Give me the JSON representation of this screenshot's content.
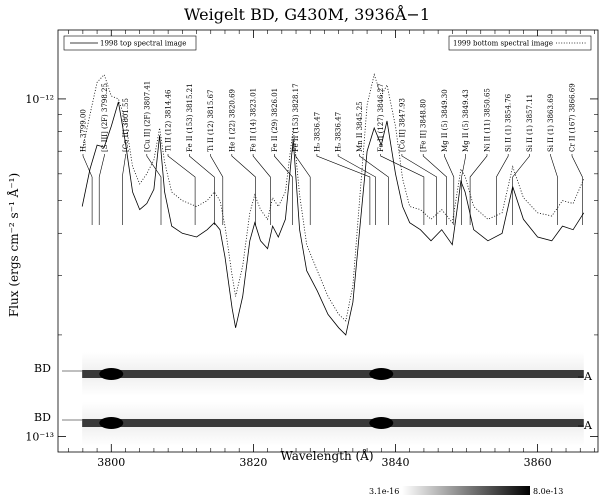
{
  "chart_data": {
    "type": "line",
    "title": "Weigelt BD, G430M, 3936Å−1",
    "xlabel": "Wavelength (Å)",
    "ylabel": "Flux (ergs cm⁻² s⁻¹ Å⁻¹)",
    "xlim": [
      3792.5,
      3868.5
    ],
    "ylim": [
      9e-14,
      1.6e-12
    ],
    "yscale": "log",
    "x_ticks": [
      3800,
      3820,
      3840,
      3860
    ],
    "x_tick_labels": [
      "3800",
      "3820",
      "3840",
      "3860"
    ],
    "y_ticks": [
      1e-13,
      1e-12
    ],
    "y_tick_labels": [
      "10⁻¹³",
      "10⁻¹²"
    ],
    "legend": [
      {
        "label": "1998 top spectral image",
        "style": "solid",
        "position": "top-left"
      },
      {
        "label": "1999 bottom spectral image",
        "style": "dotted",
        "position": "top-right"
      }
    ],
    "series": [
      {
        "name": "1998 top spectral image",
        "style": "solid",
        "x": [
          3795.9,
          3797.0,
          3798.0,
          3799.0,
          3800.0,
          3801.0,
          3802.0,
          3803.0,
          3804.0,
          3805.0,
          3806.0,
          3806.8,
          3807.5,
          3808.5,
          3810.0,
          3812.0,
          3813.5,
          3814.5,
          3815.3,
          3816.0,
          3817.0,
          3817.5,
          3818.5,
          3819.5,
          3820.2,
          3821.0,
          3822.0,
          3822.7,
          3823.5,
          3824.5,
          3825.6,
          3826.5,
          3827.5,
          3829.0,
          3830.5,
          3832.0,
          3833.0,
          3834.0,
          3835.0,
          3836.0,
          3837.0,
          3838.0,
          3838.8,
          3840.0,
          3841.0,
          3842.0,
          3843.5,
          3845.0,
          3846.5,
          3848.0,
          3849.2,
          3849.8,
          3851.0,
          3853.0,
          3855.0,
          3856.5,
          3858.0,
          3860.0,
          3862.0,
          3863.5,
          3865.0,
          3866.5
        ],
        "y": [
          4.8e-13,
          6.2e-13,
          7.3e-13,
          7.2e-13,
          8.3e-13,
          9.8e-13,
          7.4e-13,
          5.3e-13,
          4.7e-13,
          4.9e-13,
          5.4e-13,
          7.8e-13,
          5.3e-13,
          4.2e-13,
          4e-13,
          3.9e-13,
          4.1e-13,
          4.3e-13,
          4.1e-13,
          3.4e-13,
          2.4e-13,
          2.1e-13,
          2.6e-13,
          3.8e-13,
          4.3e-13,
          3.8e-13,
          3.6e-13,
          4.2e-13,
          3.9e-13,
          4.4e-13,
          7.6e-13,
          4.1e-13,
          3.1e-13,
          2.7e-13,
          2.3e-13,
          2.1e-13,
          2e-13,
          2.5e-13,
          4.2e-13,
          7e-13,
          8.2e-13,
          7.3e-13,
          8.6e-13,
          6e-13,
          4.8e-13,
          4.3e-13,
          4.1e-13,
          3.8e-13,
          4.1e-13,
          3.7e-13,
          5.7e-13,
          5.3e-13,
          4.1e-13,
          3.8e-13,
          4e-13,
          5.5e-13,
          4.4e-13,
          3.9e-13,
          3.8e-13,
          4.2e-13,
          4.1e-13,
          4.6e-13
        ]
      },
      {
        "name": "1999 bottom spectral image",
        "style": "dotted",
        "x": [
          3795.9,
          3797.0,
          3798.0,
          3799.0,
          3800.0,
          3801.0,
          3802.0,
          3803.0,
          3804.0,
          3805.0,
          3806.0,
          3806.8,
          3807.5,
          3808.5,
          3810.0,
          3812.0,
          3813.5,
          3814.5,
          3815.3,
          3816.0,
          3817.0,
          3817.5,
          3818.5,
          3819.5,
          3820.2,
          3821.0,
          3822.0,
          3822.7,
          3823.5,
          3824.5,
          3825.6,
          3826.5,
          3827.5,
          3829.0,
          3830.5,
          3832.0,
          3833.0,
          3834.0,
          3835.0,
          3836.0,
          3837.0,
          3838.0,
          3838.8,
          3840.0,
          3841.0,
          3842.0,
          3843.5,
          3845.0,
          3846.5,
          3848.0,
          3849.2,
          3849.8,
          3851.0,
          3853.0,
          3855.0,
          3856.5,
          3858.0,
          3860.0,
          3862.0,
          3863.5,
          3865.0,
          3866.5
        ],
        "y": [
          7e-13,
          9e-13,
          1.12e-12,
          1.18e-12,
          1.02e-12,
          1e-12,
          8.6e-13,
          6.3e-13,
          5.6e-13,
          6e-13,
          6.6e-13,
          8.2e-13,
          6.5e-13,
          5.3e-13,
          5e-13,
          4.8e-13,
          5e-13,
          5.3e-13,
          5e-13,
          4.2e-13,
          3e-13,
          2.6e-13,
          3.2e-13,
          4.6e-13,
          5.2e-13,
          4.7e-13,
          4.4e-13,
          5.1e-13,
          4.8e-13,
          5.3e-13,
          8.2e-13,
          5.2e-13,
          3.7e-13,
          3.1e-13,
          2.6e-13,
          2.3e-13,
          2.2e-13,
          2.8e-13,
          5.2e-13,
          9.6e-13,
          1.18e-12,
          1.02e-12,
          1.1e-12,
          8.3e-13,
          5.8e-13,
          4.8e-13,
          4.7e-13,
          4.4e-13,
          4.7e-13,
          4.3e-13,
          6.2e-13,
          5.9e-13,
          4.8e-13,
          4.4e-13,
          4.6e-13,
          6.3e-13,
          5.1e-13,
          4.6e-13,
          4.5e-13,
          5e-13,
          4.9e-13,
          5.8e-13
        ]
      }
    ],
    "line_ids": [
      {
        "label": "H₁₀ 3799.00",
        "wavelength": 3799.0,
        "target": 3797.3
      },
      {
        "label": "[S III] (2F) 3798.25",
        "wavelength": 3798.25,
        "target": 3798.3
      },
      {
        "label": "[Co II] 3801.55",
        "wavelength": 3801.55,
        "target": 3801.55
      },
      {
        "label": "[Cu II] (2F) 3807.41",
        "wavelength": 3807.41,
        "target": 3807.0
      },
      {
        "label": "Ti II (12) 3814.46",
        "wavelength": 3814.46,
        "target": 3811.8
      },
      {
        "label": "Fe II (153) 3815.21",
        "wavelength": 3815.21,
        "target": 3814.5
      },
      {
        "label": "Ti II (12) 3815.67",
        "wavelength": 3815.67,
        "target": 3815.7
      },
      {
        "label": "He I (22) 3820.69",
        "wavelength": 3820.69,
        "target": 3820.3
      },
      {
        "label": "Fe II (14) 3823.01",
        "wavelength": 3823.01,
        "target": 3822.4
      },
      {
        "label": "Fe II (29) 3826.01",
        "wavelength": 3826.01,
        "target": 3825.5
      },
      {
        "label": "Fe II (153) 3828.17",
        "wavelength": 3828.17,
        "target": 3828.0
      },
      {
        "label": "H₉ 3836.47",
        "wavelength": 3836.47,
        "target": 3836.4
      },
      {
        "label": "H₉ 3836.47",
        "wavelength": 3836.47,
        "target": 3837.2
      },
      {
        "label": "Mn II 3845.25",
        "wavelength": 3845.25,
        "target": 3839.0
      },
      {
        "label": "Fe II (127) 3846.27",
        "wavelength": 3846.27,
        "target": 3844.0
      },
      {
        "label": "[Co II] 3847.93",
        "wavelength": 3847.93,
        "target": 3845.8
      },
      {
        "label": "[Fe II] 3848.80",
        "wavelength": 3848.8,
        "target": 3847.2
      },
      {
        "label": "Mg II (5) 3849.30",
        "wavelength": 3849.3,
        "target": 3848.2
      },
      {
        "label": "Mg II (5) 3849.43",
        "wavelength": 3849.43,
        "target": 3849.3
      },
      {
        "label": "Ni II (11) 3850.65",
        "wavelength": 3850.65,
        "target": 3850.5
      },
      {
        "label": "Si II (1) 3854.76",
        "wavelength": 3854.76,
        "target": 3854.2
      },
      {
        "label": "Si II (1) 3857.11",
        "wavelength": 3857.11,
        "target": 3856.5
      },
      {
        "label": "Si II (1) 3863.69",
        "wavelength": 3863.69,
        "target": 3862.8
      },
      {
        "label": "Cr II (167) 3866.69",
        "wavelength": 3866.69,
        "target": 3866.3
      }
    ],
    "spectral_image": {
      "strips": [
        {
          "left_label": "BD",
          "right_label": "A"
        },
        {
          "left_label": "BD",
          "right_label": "A"
        }
      ],
      "colorbar": {
        "min_label": "3.1e-16",
        "max_label": "8.0e-13"
      }
    }
  }
}
